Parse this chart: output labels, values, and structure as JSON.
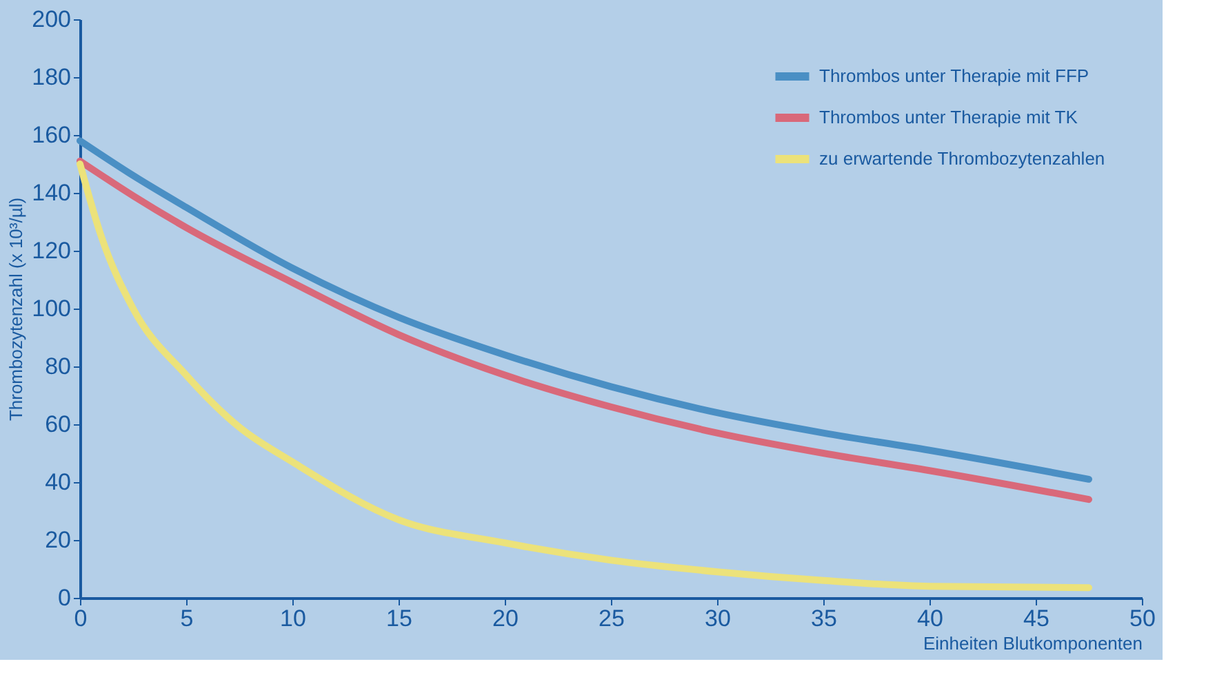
{
  "chart_data": {
    "type": "line",
    "ylabel": "Thrombozytenzahl (x 10³/µl)",
    "xlabel": "Einheiten Blutkomponenten",
    "xlim": [
      0,
      50
    ],
    "xticks": [
      0,
      5,
      10,
      15,
      20,
      25,
      30,
      35,
      40,
      45,
      50
    ],
    "ylim": [
      0,
      200
    ],
    "yticks": [
      0,
      20,
      40,
      60,
      80,
      100,
      120,
      140,
      160,
      180,
      200
    ],
    "grid": false,
    "legend": "top right",
    "marker": "none",
    "line_style": "solid",
    "series": [
      {
        "name": "Thrombos unter Therapie mit FFP",
        "color": "#4a8fc4",
        "x": [
          0,
          2.5,
          5,
          10,
          15,
          20,
          25,
          30,
          35,
          40,
          47.5
        ],
        "values": [
          158,
          146,
          135,
          114,
          97,
          84,
          73,
          64,
          57,
          51,
          41
        ]
      },
      {
        "name": "Thrombos unter Therapie mit TK",
        "color": "#d9697a",
        "x": [
          0,
          2.5,
          5,
          10,
          15,
          20,
          25,
          30,
          35,
          40,
          47.5
        ],
        "values": [
          151,
          139,
          128,
          109,
          91,
          77,
          66,
          57,
          50,
          44,
          34
        ]
      },
      {
        "name": "zu erwartende Thrombozytenzahlen",
        "color": "#ece27a",
        "x": [
          0,
          1,
          2.5,
          5,
          7.5,
          10,
          15,
          20,
          25,
          30,
          35,
          40,
          47.5
        ],
        "values": [
          150,
          125,
          100,
          77,
          59,
          47,
          27,
          19,
          13,
          9,
          6,
          4,
          3.5
        ]
      }
    ]
  }
}
